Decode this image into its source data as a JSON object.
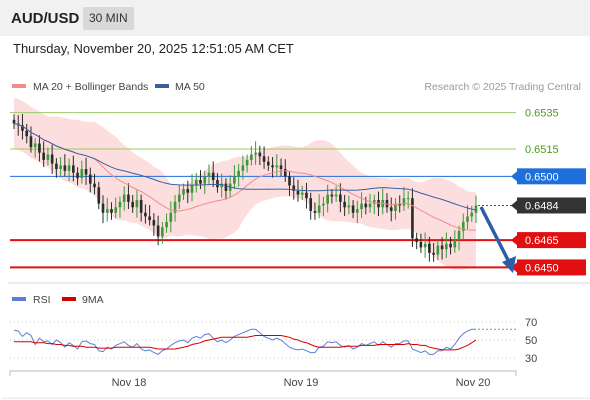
{
  "header": {
    "symbol": "AUD/USD",
    "timeframe": "30 MIN",
    "datetime": "Thursday, November 20, 2025 12:51:05 AM CET"
  },
  "chart_data": [
    {
      "type": "candlestick",
      "legend": [
        {
          "name": "MA 20 + Bollinger Bands",
          "color": "#f28c8c"
        },
        {
          "name": "MA 50",
          "color": "#3b5f9e"
        }
      ],
      "source_note": "Research © 2025 Trading Central",
      "ylim": [
        0.6442,
        0.6543
      ],
      "x_ticks": [
        "Nov 18",
        "Nov 19",
        "Nov 20"
      ],
      "levels": [
        {
          "label": "0.6535",
          "value": 0.6535,
          "kind": "resistance-minor",
          "color": "#9ccc65",
          "text_color": "#4c9a1c"
        },
        {
          "label": "0.6515",
          "value": 0.6515,
          "kind": "resistance-minor",
          "color": "#9ccc65",
          "text_color": "#4c9a1c"
        },
        {
          "label": "0.6500",
          "value": 0.65,
          "kind": "resistance",
          "color": "#1e6fd9",
          "text_color": "#ffffff"
        },
        {
          "label": "0.6484",
          "value": 0.6484,
          "kind": "current",
          "color": "#333333",
          "text_color": "#ffffff"
        },
        {
          "label": "0.6465",
          "value": 0.6465,
          "kind": "support",
          "color": "#e01010",
          "text_color": "#ffffff"
        },
        {
          "label": "0.6450",
          "value": 0.645,
          "kind": "support",
          "color": "#e01010",
          "text_color": "#ffffff"
        }
      ],
      "close_series": [
        0.6529,
        0.6528,
        0.6525,
        0.6522,
        0.6516,
        0.6518,
        0.6513,
        0.6509,
        0.6512,
        0.6507,
        0.6504,
        0.6506,
        0.6503,
        0.6506,
        0.6502,
        0.6499,
        0.6504,
        0.6501,
        0.6496,
        0.6494,
        0.6485,
        0.648,
        0.6482,
        0.648,
        0.6483,
        0.6486,
        0.649,
        0.6486,
        0.6483,
        0.6487,
        0.648,
        0.6478,
        0.6476,
        0.6473,
        0.6467,
        0.6472,
        0.6475,
        0.648,
        0.6486,
        0.649,
        0.6493,
        0.6491,
        0.6495,
        0.6498,
        0.6496,
        0.65,
        0.6502,
        0.6498,
        0.6494,
        0.6496,
        0.6492,
        0.6496,
        0.65,
        0.6503,
        0.6506,
        0.6509,
        0.6512,
        0.6513,
        0.6511,
        0.6508,
        0.6506,
        0.6505,
        0.6506,
        0.6504,
        0.65,
        0.6495,
        0.6492,
        0.649,
        0.6491,
        0.6488,
        0.6481,
        0.648,
        0.6484,
        0.6485,
        0.649,
        0.6489,
        0.649,
        0.6486,
        0.6483,
        0.6484,
        0.648,
        0.6482,
        0.6485,
        0.6483,
        0.6485,
        0.6487,
        0.6483,
        0.6487,
        0.6483,
        0.6481,
        0.6485,
        0.6484,
        0.6488,
        0.6488,
        0.6466,
        0.6464,
        0.6461,
        0.6463,
        0.6458,
        0.6457,
        0.6462,
        0.646,
        0.6463,
        0.6461,
        0.6465,
        0.647,
        0.6475,
        0.6478,
        0.648,
        0.6484
      ],
      "annotation": "arrow-down-from-0.6484-to-0.6450"
    },
    {
      "type": "line",
      "legend": [
        {
          "name": "RSI",
          "color": "#5b7fd6"
        },
        {
          "name": "9MA",
          "color": "#d40000"
        }
      ],
      "ylim": [
        20,
        80
      ],
      "y_ticks": [
        70,
        50,
        30
      ],
      "rsi": [
        61,
        60,
        54,
        58,
        55,
        45,
        52,
        48,
        49,
        45,
        50,
        47,
        42,
        47,
        44,
        40,
        48,
        49,
        46,
        45,
        38,
        37,
        42,
        40,
        44,
        46,
        48,
        44,
        42,
        46,
        40,
        38,
        39,
        36,
        34,
        38,
        40,
        44,
        47,
        49,
        50,
        47,
        52,
        54,
        52,
        56,
        57,
        52,
        48,
        50,
        47,
        50,
        54,
        56,
        58,
        60,
        62,
        62,
        58,
        54,
        52,
        50,
        52,
        50,
        46,
        42,
        40,
        39,
        40,
        38,
        36,
        36,
        42,
        43,
        48,
        47,
        48,
        44,
        42,
        44,
        40,
        42,
        46,
        44,
        46,
        48,
        44,
        48,
        45,
        42,
        46,
        46,
        49,
        49,
        40,
        38,
        36,
        38,
        34,
        34,
        38,
        38,
        42,
        40,
        45,
        52,
        57,
        60,
        62,
        62
      ],
      "ma9": [
        48,
        48,
        48,
        48,
        48,
        47,
        47,
        47,
        46,
        46,
        45,
        45,
        44,
        44,
        43,
        43,
        43,
        42,
        42,
        42,
        41,
        41,
        41,
        41,
        42,
        42,
        42,
        42,
        42,
        42,
        42,
        42,
        42,
        41,
        40,
        40,
        40,
        40,
        40,
        41,
        42,
        43,
        45,
        46,
        47,
        49,
        50,
        51,
        52,
        53,
        53,
        53,
        53,
        53,
        53,
        53,
        54,
        55,
        55,
        55,
        55,
        55,
        55,
        55,
        54,
        53,
        51,
        50,
        48,
        47,
        45,
        43,
        42,
        42,
        42,
        42,
        42,
        42,
        43,
        43,
        43,
        43,
        44,
        44,
        44,
        44,
        45,
        45,
        45,
        45,
        45,
        45,
        45,
        46,
        45,
        45,
        44,
        44,
        42,
        41,
        40,
        39,
        39,
        39,
        39,
        40,
        42,
        44,
        47,
        50
      ]
    }
  ]
}
